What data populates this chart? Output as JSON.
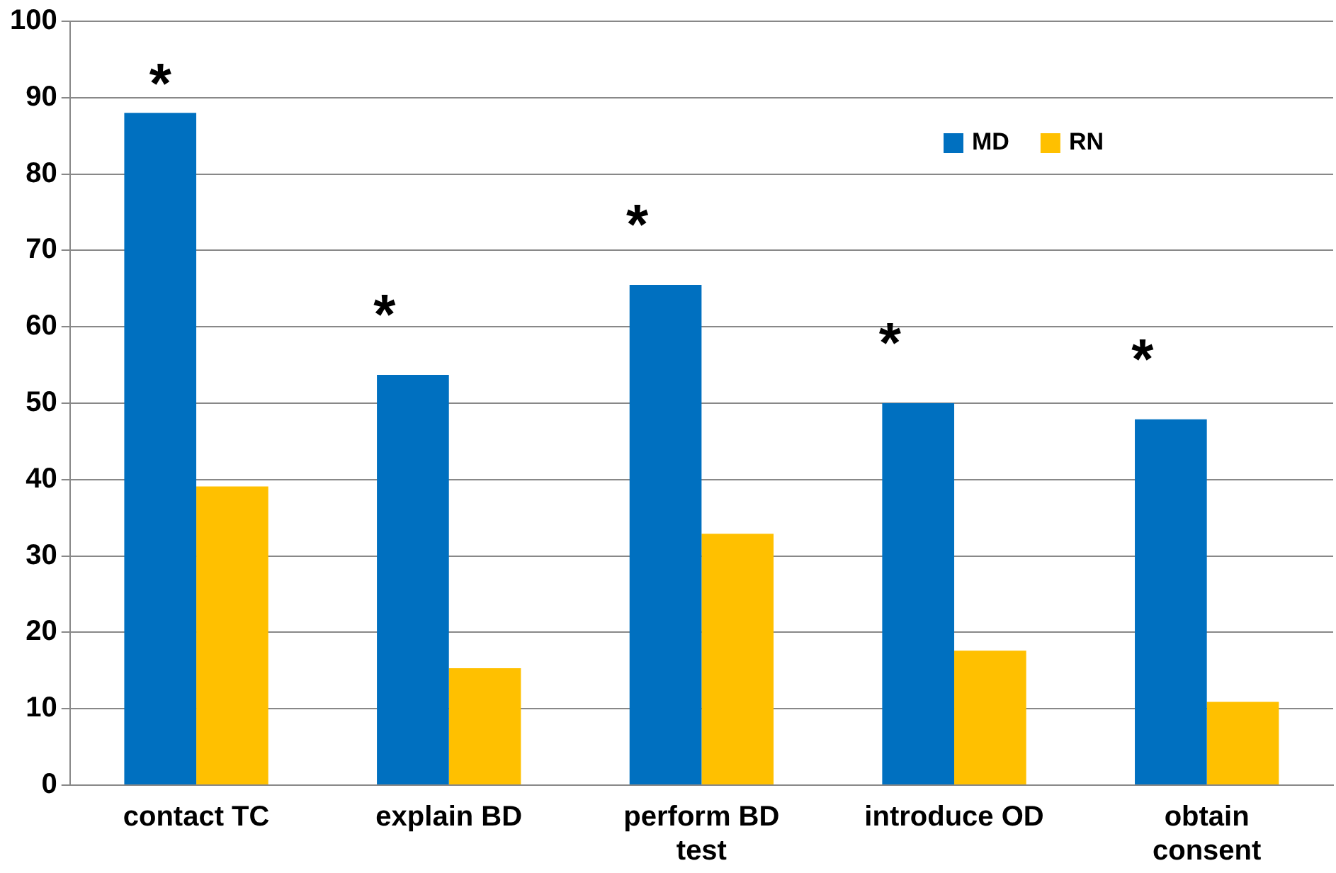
{
  "chart_data": {
    "type": "bar",
    "categories": [
      "contact TC",
      "explain BD",
      "perform BD test",
      "introduce OD",
      "obtain consent"
    ],
    "series": [
      {
        "name": "MD",
        "color": "#0070c0",
        "values": [
          88,
          53.7,
          65.5,
          50,
          47.9
        ]
      },
      {
        "name": "RN",
        "color": "#ffc000",
        "values": [
          39.1,
          15.3,
          32.9,
          17.6,
          10.9
        ]
      }
    ],
    "ylim": [
      0,
      100
    ],
    "yticks": [
      0,
      10,
      20,
      30,
      40,
      50,
      60,
      70,
      80,
      90,
      100
    ],
    "grid": "y",
    "legend": "top right",
    "annotations": [
      "*",
      "*",
      "*",
      "*",
      "*"
    ]
  }
}
